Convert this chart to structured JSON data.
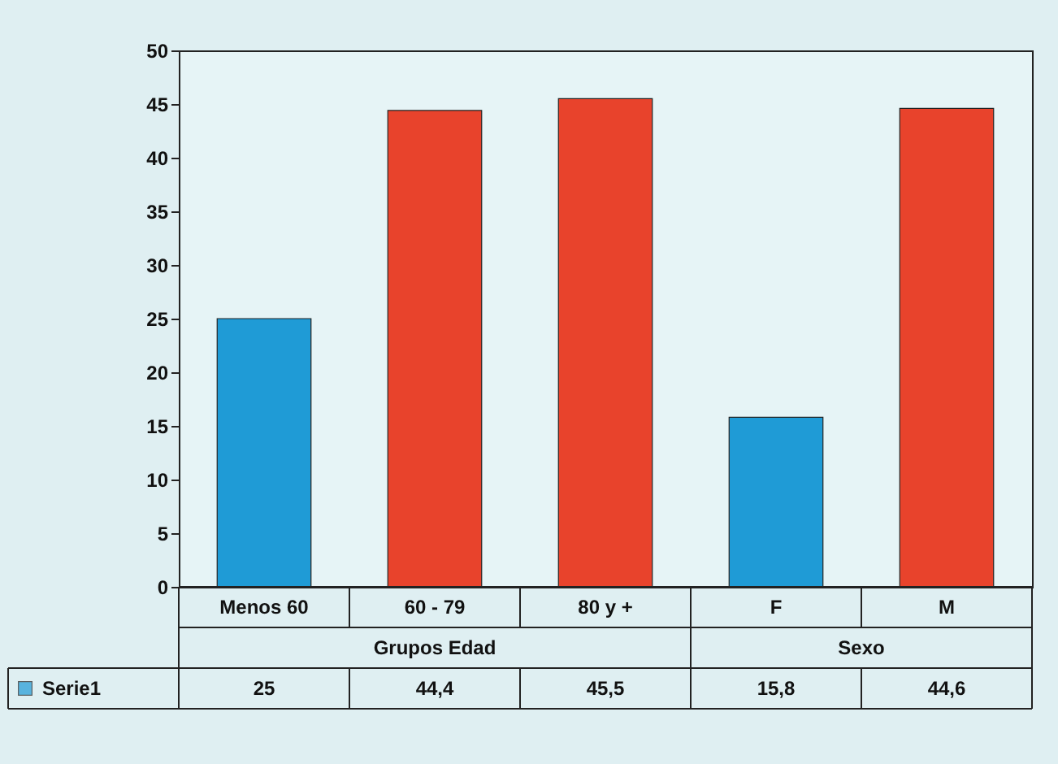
{
  "chart_data": {
    "type": "bar",
    "categories": [
      "Menos 60",
      "60 - 79",
      "80 y +",
      "F",
      "M"
    ],
    "series": [
      {
        "name": "Serie1",
        "values": [
          25,
          44.4,
          45.5,
          15.8,
          44.6
        ]
      }
    ],
    "colors": [
      "#1f9bd6",
      "#e8432c",
      "#e8432c",
      "#1f9bd6",
      "#e8432c"
    ],
    "value_labels": [
      "25",
      "44,4",
      "45,5",
      "15,8",
      "44,6"
    ],
    "annotations": [
      "Grupos Edad",
      "Sexo"
    ],
    "ylim": [
      0,
      50
    ],
    "yticks": [
      0,
      5,
      10,
      15,
      20,
      25,
      30,
      35,
      40,
      45,
      50
    ],
    "grid": false,
    "legend": "bottom"
  }
}
